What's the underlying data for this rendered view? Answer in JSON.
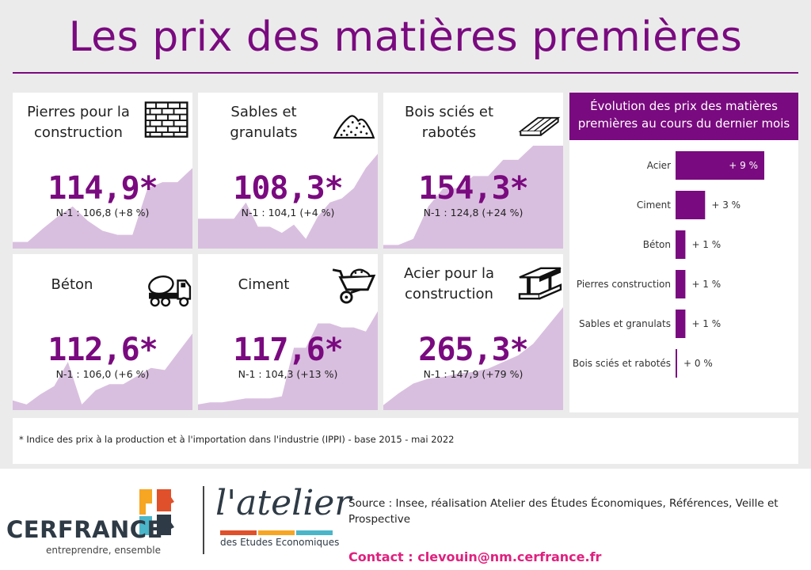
{
  "title": "Les prix des matières premières",
  "cards": [
    {
      "label_lines": [
        "Pierres pour la",
        "construction"
      ],
      "icon": "bricks-icon",
      "value": "114,9*",
      "sub": "N-1 : 106,8 (+8 %)",
      "spark": [
        5,
        5,
        18,
        30,
        40,
        26,
        16,
        12,
        12,
        58,
        64,
        64,
        78
      ]
    },
    {
      "label_lines": [
        "Sables et",
        "granulats"
      ],
      "icon": "sand-pile-icon",
      "value": "108,3*",
      "sub": "N-1 : 104,1 (+4 %)",
      "spark": [
        28,
        28,
        28,
        28,
        44,
        20,
        20,
        14,
        22,
        8,
        30,
        44,
        48,
        58,
        78,
        92
      ]
    },
    {
      "label_lines": [
        "Bois sciés et",
        "rabotés"
      ],
      "icon": "wood-planks-icon",
      "value": "154,3*",
      "sub": "N-1 : 124,8 (+24 %)",
      "spark": [
        2,
        2,
        8,
        40,
        58,
        58,
        70,
        70,
        86,
        86,
        100,
        100,
        100
      ]
    },
    {
      "label_lines": [
        "Béton"
      ],
      "icon": "concrete-mixer-icon",
      "value": "112,6*",
      "sub": "N-1 : 106,0 (+6 %)",
      "spark": [
        8,
        4,
        14,
        22,
        46,
        4,
        18,
        24,
        24,
        32,
        40,
        38,
        56,
        74
      ]
    },
    {
      "label_lines": [
        "Ciment"
      ],
      "icon": "wheelbarrow-icon",
      "value": "117,6*",
      "sub": "N-1 : 104,3 (+13 %)",
      "spark": [
        4,
        6,
        6,
        8,
        10,
        10,
        10,
        12,
        60,
        60,
        84,
        84,
        80,
        80,
        76,
        96
      ]
    },
    {
      "label_lines": [
        "Acier pour la",
        "construction"
      ],
      "icon": "steel-beam-icon",
      "value": "265,3*",
      "sub": "N-1 : 147,9 (+79 %)",
      "spark": [
        4,
        18,
        30,
        36,
        38,
        42,
        44,
        48,
        56,
        64,
        78,
        100,
        122
      ]
    }
  ],
  "panel_title_lines": [
    "Évolution des prix des matières",
    "premières au cours du dernier mois"
  ],
  "chart_data": {
    "type": "bar",
    "orientation": "horizontal",
    "title": "Évolution des prix des matières premières au cours du dernier mois",
    "categories": [
      "Acier",
      "Ciment",
      "Béton",
      "Pierres construction",
      "Sables et granulats",
      "Bois sciés et rabotés"
    ],
    "values": [
      9,
      3,
      1,
      1,
      1,
      0
    ],
    "value_labels": [
      "+ 9 %",
      "+ 3 %",
      "+ 1 %",
      "+ 1 %",
      "+ 1 %",
      "+ 0 %"
    ],
    "unit": "%",
    "bar_color": "#7a0a7f"
  },
  "footnote": "* Indice des prix à la production et à l'importation dans l'industrie (IPPI) - base 2015 - mai 2022",
  "footer": {
    "cerfrance_name": "CERFRANCE",
    "cerfrance_tagline": "entreprendre, ensemble",
    "atelier_name": "l'atelier",
    "atelier_sub": "des Etudes Economiques",
    "source_line1": "Source : Insee, réalisation Atelier des Études Économiques, Références, Veille et",
    "source_line2": "Prospective",
    "contact": "Contact : clevouin@nm.cerfrance.fr"
  },
  "colors": {
    "accent": "#7a0a7f",
    "fill": "#d9bfdf",
    "contact": "#e0207e"
  }
}
